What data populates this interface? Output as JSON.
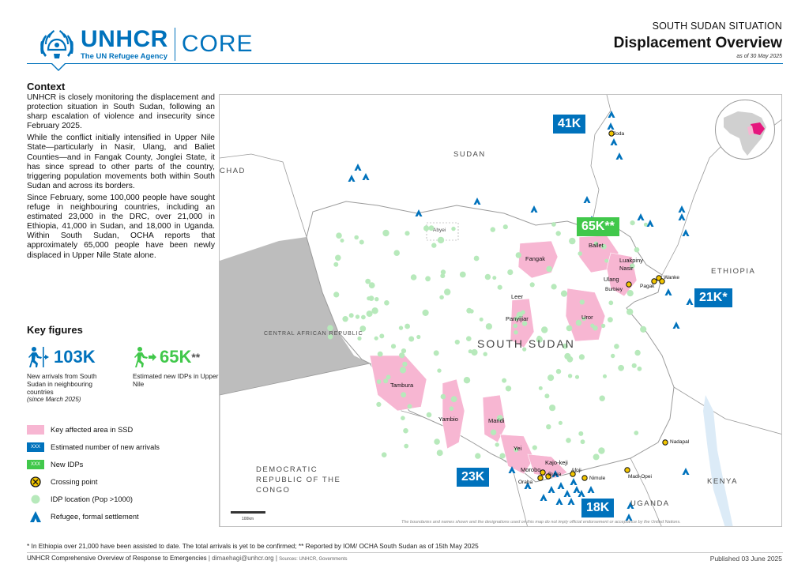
{
  "header": {
    "logo_main": "UNHCR",
    "logo_tagline": "The UN Refugee Agency",
    "logo_suffix": "CORE",
    "situation": "SOUTH SUDAN SITUATION",
    "title": "Displacement Overview",
    "date": "as of 30 May 2025"
  },
  "context": {
    "title": "Context",
    "paragraphs": [
      "UNHCR is closely monitoring the displacement and protection situation in South Sudan, following an sharp escalation of violence and insecurity since February 2025.",
      "While the conflict initially intensified in Upper Nile State—particularly in Nasir, Ulang, and Baliet Counties—and in Fangak County, Jonglei State, it has since spread to other parts of the country, triggering population movements both within South Sudan and across its borders.",
      "Since February, some 100,000 people have sought refuge in neighbouring countries, including an estimated 23,000 in the DRC, over 21,000 in Ethiopia, 41,000 in Sudan, and 18,000 in Uganda. Within South Sudan, OCHA reports that approximately 65,000 people have been newly displaced in Upper Nile State alone."
    ]
  },
  "key_figures": {
    "title": "Key figures",
    "arrivals": {
      "value": "103K",
      "caption": "New arrivals from South Sudan in neighbouring countries",
      "note": "(since March 2025)"
    },
    "idps": {
      "value": "65K",
      "suffix": "**",
      "caption": "Estimated new IDPs in Upper Nile"
    }
  },
  "legend": {
    "items": [
      {
        "label": "Key affected area in SSD"
      },
      {
        "label": "Estimated number of new arrivals",
        "swatch_text": "XXX"
      },
      {
        "label": "New IDPs",
        "swatch_text": "XXX"
      },
      {
        "label": "Crossing point"
      },
      {
        "label": "IDP location (Pop >1000)"
      },
      {
        "label": "Refugee, formal settlement"
      }
    ]
  },
  "map": {
    "countries": {
      "sudan": "SUDAN",
      "chad": "CHAD",
      "car": "CENTRAL AFRICAN REPUBLIC",
      "ethiopia": "ETHIOPIA",
      "south_sudan": "SOUTH SUDAN",
      "drc": "DEMOCRATIC REPUBLIC OF THE CONGO",
      "uganda": "UGANDA",
      "kenya": "KENYA",
      "abyei": "Abyei"
    },
    "callouts": {
      "sudan": "41K",
      "upper_nile_idps": "65K**",
      "ethiopia": "21K*",
      "drc": "23K",
      "uganda": "18K"
    },
    "places": {
      "joda": "Joda",
      "ballet": "Ballet",
      "luakpiny": "Luakpiny Nasir",
      "ulang": "Ulang",
      "burbiey": "Burbiey",
      "pagak": "Pagak",
      "wanke": "Wanke",
      "fangak": "Fangak",
      "leer": "Leer",
      "panyijiar": "Panyijiar",
      "uror": "Uror",
      "tambura": "Tambura",
      "yambio": "Yambio",
      "maridi": "Maridi",
      "yei": "Yei",
      "kajo_keji": "Kajo-keji",
      "morobo": "Morobo",
      "busia": "Busia",
      "afoji": "Afoji",
      "nimule": "Nimule",
      "madi_opei": "Madi-Opei",
      "oraba": "Oraba",
      "nadapal": "Nadapal"
    },
    "scale_label": "100km",
    "disclaimer": "The boundaries and names shown and the designations used on this map do not imply official endorsement or acceptance by the United Nations."
  },
  "footer": {
    "note": "* In Ethiopia over 21,000 have been assisted to date. The total arrivals is yet to be confirmed; ** Reported by IOM/ OCHA South Sudan as of 15th May 2025",
    "left": "UNHCR Comprehensive Overview of Response to Emergencies",
    "email": "dimaehagi@unhcr.org",
    "source": "Sources: UNHCR, Governments",
    "published": "Published 03 June 2025"
  },
  "colors": {
    "unhcr_blue": "#0072bc",
    "idp_green": "#41c84b",
    "affected_pink": "#f7b6d2",
    "crossing_yellow": "#f2c500"
  }
}
